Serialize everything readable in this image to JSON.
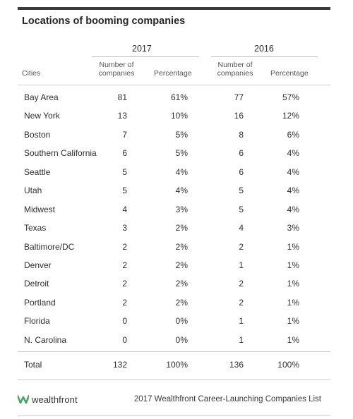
{
  "title": "Locations of booming companies",
  "years": {
    "y2017": "2017",
    "y2016": "2016"
  },
  "headers": {
    "city": "Cities",
    "num_line1": "Number of",
    "num_line2": "companies",
    "pct": "Percentage"
  },
  "rows": [
    {
      "city": "Bay Area",
      "n17": "81",
      "p17": "61%",
      "n16": "77",
      "p16": "57%"
    },
    {
      "city": "New York",
      "n17": "13",
      "p17": "10%",
      "n16": "16",
      "p16": "12%"
    },
    {
      "city": "Boston",
      "n17": "7",
      "p17": "5%",
      "n16": "8",
      "p16": "6%"
    },
    {
      "city": "Southern California",
      "n17": "6",
      "p17": "5%",
      "n16": "6",
      "p16": "4%"
    },
    {
      "city": "Seattle",
      "n17": "5",
      "p17": "4%",
      "n16": "6",
      "p16": "4%"
    },
    {
      "city": "Utah",
      "n17": "5",
      "p17": "4%",
      "n16": "5",
      "p16": "4%"
    },
    {
      "city": "Midwest",
      "n17": "4",
      "p17": "3%",
      "n16": "5",
      "p16": "4%"
    },
    {
      "city": "Texas",
      "n17": "3",
      "p17": "2%",
      "n16": "4",
      "p16": "3%"
    },
    {
      "city": "Baltimore/DC",
      "n17": "2",
      "p17": "2%",
      "n16": "2",
      "p16": "1%"
    },
    {
      "city": "Denver",
      "n17": "2",
      "p17": "2%",
      "n16": "1",
      "p16": "1%"
    },
    {
      "city": "Detroit",
      "n17": "2",
      "p17": "2%",
      "n16": "2",
      "p16": "1%"
    },
    {
      "city": "Portland",
      "n17": "2",
      "p17": "2%",
      "n16": "2",
      "p16": "1%"
    },
    {
      "city": "Florida",
      "n17": "0",
      "p17": "0%",
      "n16": "1",
      "p16": "1%"
    },
    {
      "city": "N. Carolina",
      "n17": "0",
      "p17": "0%",
      "n16": "1",
      "p16": "1%"
    }
  ],
  "total": {
    "label": "Total",
    "n17": "132",
    "p17": "100%",
    "n16": "136",
    "p16": "100%"
  },
  "footer": {
    "brand": "wealthfront",
    "brand_icon": "wealthfront-logo-icon",
    "brand_color": "#4aa564",
    "note": "2017 Wealthfront Career-Launching Companies List"
  }
}
